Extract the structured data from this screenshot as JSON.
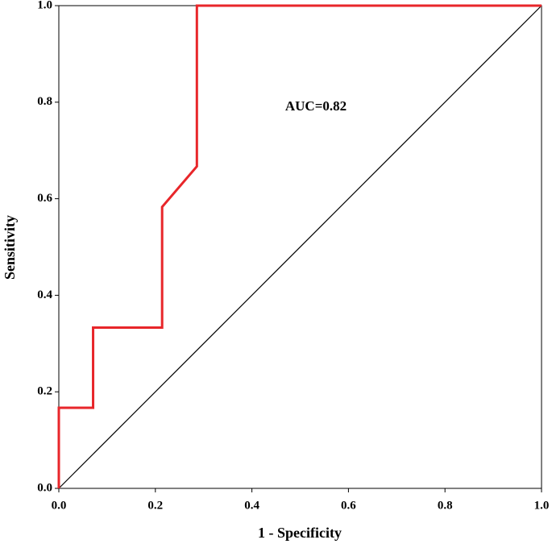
{
  "chart_data": {
    "type": "line",
    "xlabel": "1 - Specificity",
    "ylabel": "Sensitivity",
    "annotation": "AUC=0.82",
    "series": [
      {
        "color": "#e8262a",
        "x": [
          0,
          0,
          0.071,
          0.071,
          0.214,
          0.214,
          0.286,
          0.286,
          1
        ],
        "values": [
          0,
          0.167,
          0.167,
          0.333,
          0.333,
          0.583,
          0.667,
          1,
          1
        ]
      },
      {
        "color": "#000000",
        "x": [
          0,
          1
        ],
        "values": [
          0,
          1
        ]
      }
    ],
    "xlim": [
      0,
      1
    ],
    "ylim": [
      0,
      1
    ],
    "xticks": [
      {
        "value": 0,
        "label": "0.0"
      },
      0.2,
      0.4,
      0.6,
      0.8,
      {
        "value": 1,
        "label": "1.0"
      }
    ],
    "yticks": [
      {
        "value": 0,
        "label": "0.0"
      },
      0.2,
      0.4,
      0.6,
      0.8,
      {
        "value": 1,
        "label": "1.0"
      }
    ],
    "grid": false
  }
}
